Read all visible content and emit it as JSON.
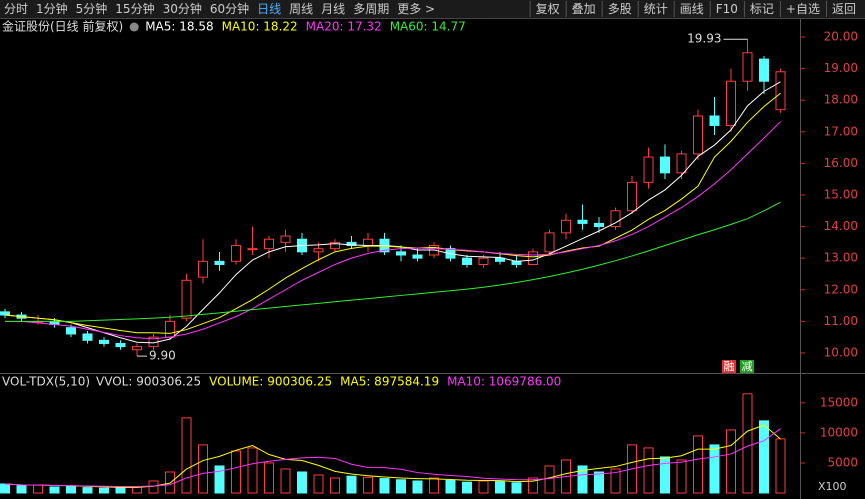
{
  "toolbar": {
    "left": [
      "分时",
      "1分钟",
      "5分钟",
      "15分钟",
      "30分钟",
      "60分钟",
      "日线",
      "周线",
      "月线",
      "多周期",
      "更多 >"
    ],
    "active": "日线",
    "right": [
      "复权",
      "叠加",
      "多股",
      "统计",
      "画线",
      "F10",
      "标记",
      "+自选",
      "返回"
    ]
  },
  "chart_data": [
    {
      "type": "candlestick",
      "title": "金证股份(日线 前复权)",
      "up_color": "#ff3c3c",
      "down_color": "#54ffff",
      "open": [
        11.3,
        11.2,
        11.0,
        11.0,
        10.8,
        10.6,
        10.4,
        10.3,
        10.1,
        10.2,
        10.5,
        11.1,
        12.4,
        12.9,
        12.9,
        13.3,
        13.3,
        13.5,
        13.6,
        13.2,
        13.3,
        13.5,
        13.4,
        13.6,
        13.2,
        13.1,
        13.1,
        13.3,
        13.0,
        12.8,
        13.0,
        12.9,
        12.8,
        13.2,
        13.8,
        14.2,
        14.1,
        14.0,
        14.5,
        15.4,
        16.2,
        15.7,
        16.3,
        17.5,
        17.2,
        18.6,
        19.3,
        17.7
      ],
      "high": [
        11.4,
        11.3,
        11.2,
        11.1,
        10.9,
        10.7,
        10.5,
        10.4,
        10.3,
        10.6,
        11.2,
        12.5,
        13.6,
        13.2,
        13.6,
        14.0,
        13.7,
        13.9,
        13.8,
        13.5,
        13.6,
        13.7,
        13.8,
        13.8,
        13.4,
        13.3,
        13.5,
        13.4,
        13.1,
        13.1,
        13.2,
        13.1,
        13.3,
        13.9,
        14.4,
        14.7,
        14.3,
        14.6,
        15.6,
        16.5,
        16.6,
        16.4,
        17.7,
        18.1,
        19.0,
        19.93,
        19.4,
        19.0
      ],
      "low": [
        11.1,
        11.0,
        10.9,
        10.8,
        10.5,
        10.3,
        10.2,
        10.1,
        9.9,
        10.1,
        10.4,
        11.0,
        12.2,
        12.6,
        12.8,
        13.1,
        13.0,
        13.2,
        13.1,
        12.9,
        13.2,
        13.3,
        13.2,
        13.1,
        12.9,
        12.9,
        13.0,
        12.9,
        12.7,
        12.7,
        12.8,
        12.7,
        12.8,
        13.1,
        13.6,
        13.9,
        13.8,
        13.9,
        14.4,
        15.2,
        15.5,
        15.5,
        16.1,
        16.9,
        17.0,
        18.3,
        18.2,
        17.6
      ],
      "close": [
        11.2,
        11.1,
        11.0,
        10.9,
        10.6,
        10.4,
        10.3,
        10.2,
        10.2,
        10.5,
        11.0,
        12.3,
        12.9,
        12.8,
        13.4,
        13.3,
        13.6,
        13.7,
        13.2,
        13.3,
        13.5,
        13.4,
        13.6,
        13.2,
        13.1,
        13.0,
        13.4,
        13.0,
        12.8,
        13.0,
        12.9,
        12.8,
        13.2,
        13.8,
        14.2,
        14.1,
        14.0,
        14.5,
        15.4,
        16.2,
        15.7,
        16.3,
        17.5,
        17.2,
        18.6,
        19.5,
        18.6,
        18.9
      ],
      "series": [
        {
          "name": "MA5: 18.58",
          "color": "#ffffff",
          "values": [
            11.2,
            11.15,
            11.1,
            11.05,
            10.96,
            10.8,
            10.64,
            10.48,
            10.34,
            10.32,
            10.44,
            10.84,
            11.38,
            11.9,
            12.48,
            12.94,
            13.2,
            13.36,
            13.4,
            13.42,
            13.46,
            13.42,
            13.4,
            13.4,
            13.36,
            13.26,
            13.26,
            13.14,
            13.06,
            13.04,
            13.02,
            12.9,
            12.94,
            13.14,
            13.38,
            13.62,
            13.86,
            14.12,
            14.44,
            14.84,
            15.16,
            15.62,
            16.22,
            16.58,
            17.06,
            17.82,
            18.28,
            18.58
          ]
        },
        {
          "name": "MA10: 18.22",
          "color": "#ffff00",
          "values": [
            11.2,
            11.15,
            11.1,
            11.05,
            10.96,
            10.87,
            10.79,
            10.71,
            10.64,
            10.64,
            10.62,
            10.74,
            10.93,
            11.12,
            11.4,
            11.69,
            12.02,
            12.37,
            12.67,
            12.95,
            13.2,
            13.31,
            13.38,
            13.38,
            13.35,
            13.32,
            13.34,
            13.27,
            13.23,
            13.2,
            13.14,
            13.08,
            13.04,
            13.1,
            13.22,
            13.32,
            13.38,
            13.63,
            13.89,
            14.23,
            14.51,
            14.87,
            15.28,
            16.2,
            16.7,
            17.3,
            17.8,
            18.22
          ]
        },
        {
          "name": "MA20: 17.32",
          "color": "#ff33ff",
          "values": [
            11.0,
            11.0,
            10.95,
            10.9,
            10.85,
            10.75,
            10.65,
            10.55,
            10.48,
            10.45,
            10.5,
            10.6,
            10.75,
            10.95,
            11.15,
            11.4,
            11.7,
            12.0,
            12.3,
            12.55,
            12.8,
            13.0,
            13.15,
            13.25,
            13.3,
            13.32,
            13.3,
            13.28,
            13.25,
            13.2,
            13.15,
            13.12,
            13.1,
            13.12,
            13.2,
            13.3,
            13.4,
            13.55,
            13.75,
            14.0,
            14.3,
            14.6,
            14.95,
            15.35,
            15.8,
            16.3,
            16.8,
            17.32
          ]
        },
        {
          "name": "MA60: 14.77",
          "color": "#33ee33",
          "values": [
            11.0,
            11.0,
            11.0,
            11.0,
            11.0,
            11.02,
            11.04,
            11.06,
            11.08,
            11.1,
            11.13,
            11.17,
            11.22,
            11.27,
            11.32,
            11.37,
            11.42,
            11.47,
            11.52,
            11.57,
            11.62,
            11.67,
            11.72,
            11.77,
            11.82,
            11.87,
            11.92,
            11.97,
            12.02,
            12.08,
            12.15,
            12.23,
            12.32,
            12.42,
            12.53,
            12.65,
            12.78,
            12.92,
            13.07,
            13.23,
            13.4,
            13.57,
            13.74,
            13.9,
            14.07,
            14.25,
            14.5,
            14.77
          ]
        }
      ],
      "ylim": [
        9.46,
        20.38
      ],
      "yticks": [
        {
          "value": 10,
          "label": "10.00"
        },
        {
          "value": 11,
          "label": "11.00"
        },
        {
          "value": 12,
          "label": "12.00"
        },
        {
          "value": 13,
          "label": "13.00"
        },
        {
          "value": 14,
          "label": "14.00"
        },
        {
          "value": 15,
          "label": "15.00"
        },
        {
          "value": 16,
          "label": "16.00"
        },
        {
          "value": 17,
          "label": "17.00"
        },
        {
          "value": 18,
          "label": "18.00"
        },
        {
          "value": 19,
          "label": "19.00"
        },
        {
          "value": 20,
          "label": "20.00"
        }
      ],
      "annotations": [
        {
          "text": "19.93",
          "value": 19.93,
          "of": "high"
        },
        {
          "text": "9.90",
          "value": 9.9,
          "of": "low"
        }
      ],
      "tags": [
        {
          "text": "融",
          "color": "#e03030"
        },
        {
          "text": "减",
          "color": "#20a020"
        }
      ]
    },
    {
      "type": "bar",
      "title": "VOL-TDX(5,10)",
      "extra_label": "VVOL: 900306.25",
      "unit_label": "X100",
      "series": [
        {
          "name": "VOLUME: 900306.25",
          "color": "#ffff00",
          "values": [
            1500,
            1200,
            1300,
            1000,
            1100,
            900,
            800,
            900,
            1000,
            2000,
            3500,
            12500,
            8000,
            4500,
            7000,
            7500,
            5000,
            4000,
            3500,
            3000,
            2500,
            2800,
            2600,
            2400,
            2200,
            2000,
            2500,
            2100,
            1800,
            2000,
            1900,
            1700,
            2500,
            4500,
            5500,
            4500,
            3500,
            4000,
            8000,
            7500,
            6000,
            5500,
            9500,
            8000,
            10500,
            16500,
            12000,
            9003
          ]
        },
        {
          "name": "MA5: 897584.19",
          "color": "#ffff00",
          "values": [
            1500,
            1350,
            1333,
            1250,
            1220,
            1100,
            1020,
            940,
            940,
            1120,
            1640,
            3980,
            5400,
            6100,
            7100,
            7900,
            6400,
            5600,
            5400,
            4600,
            3600,
            3160,
            2880,
            2660,
            2500,
            2400,
            2340,
            2240,
            2120,
            2080,
            2060,
            1900,
            1980,
            2520,
            3220,
            3740,
            4100,
            4400,
            5100,
            5700,
            5800,
            6200,
            7300,
            7300,
            7900,
            10300,
            11300,
            8976
          ]
        },
        {
          "name": "MA10: 1069786.00",
          "color": "#ff33ff",
          "values": [
            1500,
            1350,
            1333,
            1250,
            1220,
            1167,
            1114,
            1088,
            1078,
            1170,
            1370,
            2510,
            3260,
            3610,
            4210,
            4870,
            5290,
            5600,
            5850,
            5950,
            5750,
            4780,
            4240,
            4230,
            3950,
            3400,
            3110,
            2920,
            2750,
            2450,
            2330,
            2220,
            2210,
            2420,
            2750,
            3030,
            3170,
            3400,
            4020,
            4570,
            4930,
            5130,
            5630,
            6000,
            6500,
            7800,
            8700,
            10698
          ]
        }
      ],
      "ylim": [
        0,
        19300
      ],
      "yticks": [
        5000,
        10000,
        15000
      ]
    }
  ]
}
